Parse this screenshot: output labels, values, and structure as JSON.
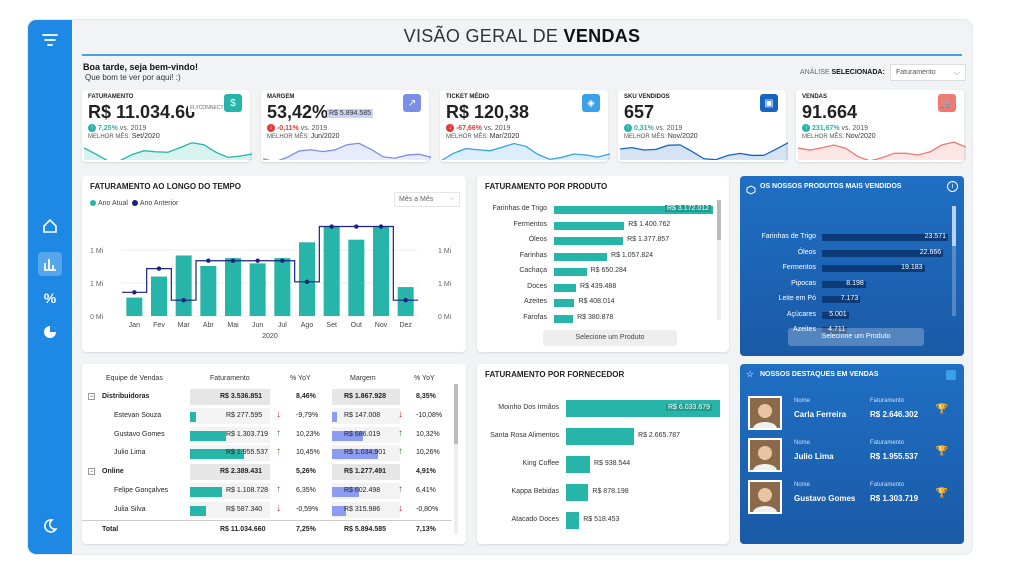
{
  "title": {
    "light": "VISÃO GERAL DE ",
    "bold": "VENDAS"
  },
  "greeting": {
    "line1": "Boa tarde, seja bem-vindo!",
    "line2": "Que bom te ver por aqui! :)"
  },
  "analysis": {
    "label_light": "ANÁLISE ",
    "label_bold": "SELECIONADA:",
    "selected": "Faturamento"
  },
  "kpis": [
    {
      "label": "FATURAMENTO",
      "value": "R$ 11.034.66",
      "change": "7,25%",
      "vs": "vs. 2019",
      "best_label": "MELHOR MÊS:",
      "best": "Set/2020",
      "color": "#26b5a8",
      "up": true,
      "icon": "money-icon",
      "overlay": "FLYCONNECT"
    },
    {
      "label": "MARGEM",
      "value": "53,42%",
      "extra": "R$ 5.894.585",
      "change": "-0,11%",
      "vs": "vs. 2019",
      "best_label": "MELHOR MÊS:",
      "best": "Jun/2020",
      "color": "#7b8fe8",
      "up": false,
      "icon": "trend-icon"
    },
    {
      "label": "TICKET MÉDIO",
      "value": "R$ 120,38",
      "change": "-67,66%",
      "vs": "vs. 2019",
      "best_label": "MELHOR MÊS:",
      "best": "Mar/2020",
      "color": "#3aa0e8",
      "up": false,
      "icon": "tag-icon"
    },
    {
      "label": "SKU VENDIDOS",
      "value": "657",
      "change": "0,31%",
      "vs": "vs. 2019",
      "best_label": "MELHOR MÊS:",
      "best": "Nov/2020",
      "color": "#1565c0",
      "up": true,
      "icon": "box-icon"
    },
    {
      "label": "VENDAS",
      "value": "91.664",
      "change": "231,67%",
      "vs": "vs. 2019",
      "best_label": "MELHOR MÊS:",
      "best": "Nov/2020",
      "color": "#f07a72",
      "up": true,
      "icon": "cart-icon"
    }
  ],
  "chart_data": [
    {
      "type": "bar",
      "title": "FATURAMENTO AO LONGO DO TEMPO",
      "categories": [
        "Jan",
        "Fev",
        "Mar",
        "Abr",
        "Mai",
        "Jun",
        "Jul",
        "Ago",
        "Set",
        "Out",
        "Nov",
        "Dez"
      ],
      "series": [
        {
          "name": "Ano Atual",
          "values": [
            0.35,
            0.75,
            1.15,
            0.95,
            1.1,
            1.0,
            1.1,
            1.4,
            1.7,
            1.45,
            1.7,
            0.55
          ]
        },
        {
          "name": "Ano Anterior",
          "values": [
            0.45,
            0.9,
            0.3,
            1.05,
            1.05,
            1.05,
            1.05,
            0.65,
            1.7,
            1.7,
            1.7,
            0.3
          ]
        }
      ],
      "xlabel": "2020",
      "yticks": [
        "0 Mi",
        "1 Mi",
        "1 Mi"
      ],
      "ylim": [
        0,
        1.9
      ],
      "dropdown": "Mês a Mês"
    },
    {
      "type": "bar",
      "title": "FATURAMENTO POR PRODUTO",
      "categories": [
        "Farinhas de Trigo",
        "Fermentos",
        "Óleos",
        "Farinhas",
        "Cachaça",
        "Doces",
        "Azeites",
        "Farofas"
      ],
      "values": [
        3172012,
        1400762,
        1377857,
        1057824,
        650284,
        439488,
        408014,
        380878
      ],
      "labels": [
        "R$ 3.172.012",
        "R$ 1.400.762",
        "R$ 1.377.857",
        "R$ 1.057.824",
        "R$ 650.284",
        "R$ 439.488",
        "R$ 408.014",
        "R$ 380.878"
      ],
      "button": "Selecione um Produto"
    },
    {
      "type": "bar",
      "title": "FATURAMENTO POR FORNECEDOR",
      "categories": [
        "Moinho Dos Irmãos",
        "Santa Rosa Alimentos",
        "King Coffee",
        "Kappa Bebidas",
        "Atacado Doces"
      ],
      "values": [
        6033679,
        2665787,
        938544,
        878198,
        518453
      ],
      "labels": [
        "R$ 6.033.679",
        "R$ 2.665.787",
        "R$ 938.544",
        "R$ 878.198",
        "R$ 518.453"
      ]
    },
    {
      "type": "bar",
      "title": "OS NOSSOS PRODUTOS MAIS VENDIDOS",
      "categories": [
        "Farinhas de Trigo",
        "Óleos",
        "Fermentos",
        "Pipocas",
        "Leite em Pó",
        "Açúcares",
        "Azeites"
      ],
      "values": [
        23571,
        22666,
        19183,
        8198,
        7173,
        5001,
        4711
      ],
      "labels": [
        "23.571",
        "22.666",
        "19.183",
        "8.198",
        "7.173",
        "5.001",
        "4.711"
      ],
      "button": "Selecione um Produto"
    }
  ],
  "table": {
    "headers": [
      "Equipe de Vendas",
      "Faturamento",
      "% YoY",
      "Margem",
      "% YoY"
    ],
    "rows": [
      {
        "name": "Distribuidoras",
        "fat": "R$ 3.536.851",
        "yoy": "8,46%",
        "marg": "R$ 1.867.928",
        "myoy": "8,35%",
        "group": true,
        "fatw": 0,
        "margw": 0
      },
      {
        "name": "Estevan Souza",
        "fat": "R$ 277.595",
        "yoy": "-9,79%",
        "marg": "R$ 147.008",
        "myoy": "-10,08%",
        "up": false,
        "mup": false,
        "fatw": 0.08,
        "margw": 0.08
      },
      {
        "name": "Gustavo Gomes",
        "fat": "R$ 1.303.719",
        "yoy": "10,23%",
        "marg": "R$ 686.019",
        "myoy": "10,32%",
        "up": true,
        "mup": true,
        "fatw": 0.45,
        "margw": 0.45
      },
      {
        "name": "Julio Lima",
        "fat": "R$ 1.955.537",
        "yoy": "10,45%",
        "marg": "R$ 1.034.901",
        "myoy": "10,26%",
        "up": true,
        "mup": true,
        "fatw": 0.68,
        "margw": 0.68
      },
      {
        "name": "Online",
        "fat": "R$ 2.389.431",
        "yoy": "5,26%",
        "marg": "R$ 1.277.491",
        "myoy": "4,91%",
        "group": true,
        "fatw": 0,
        "margw": 0
      },
      {
        "name": "Felipe Gonçalves",
        "fat": "R$ 1.108.728",
        "yoy": "6,35%",
        "marg": "R$ 602.498",
        "myoy": "6,41%",
        "up": true,
        "mup": true,
        "fatw": 0.4,
        "margw": 0.4
      },
      {
        "name": "Julia Silva",
        "fat": "R$ 587.340",
        "yoy": "-0,59%",
        "marg": "R$ 315.986",
        "myoy": "-0,80%",
        "up": false,
        "mup": false,
        "fatw": 0.2,
        "margw": 0.2
      }
    ],
    "total": {
      "name": "Total",
      "fat": "R$ 11.034.660",
      "yoy": "7,25%",
      "marg": "R$ 5.894.585",
      "myoy": "7,13%"
    }
  },
  "highlights": {
    "title": "NOSSOS DESTAQUES EM VENDAS",
    "name_label": "Nome",
    "fat_label": "Faturamento",
    "people": [
      {
        "name": "Carla Ferreira",
        "fat": "R$ 2.646.302",
        "medal": "#f5c542"
      },
      {
        "name": "Julio Lima",
        "fat": "R$ 1.955.537",
        "medal": "#e0e0e0"
      },
      {
        "name": "Gustavo Gomes",
        "fat": "R$ 1.303.719",
        "medal": "#d89a5a"
      }
    ]
  }
}
